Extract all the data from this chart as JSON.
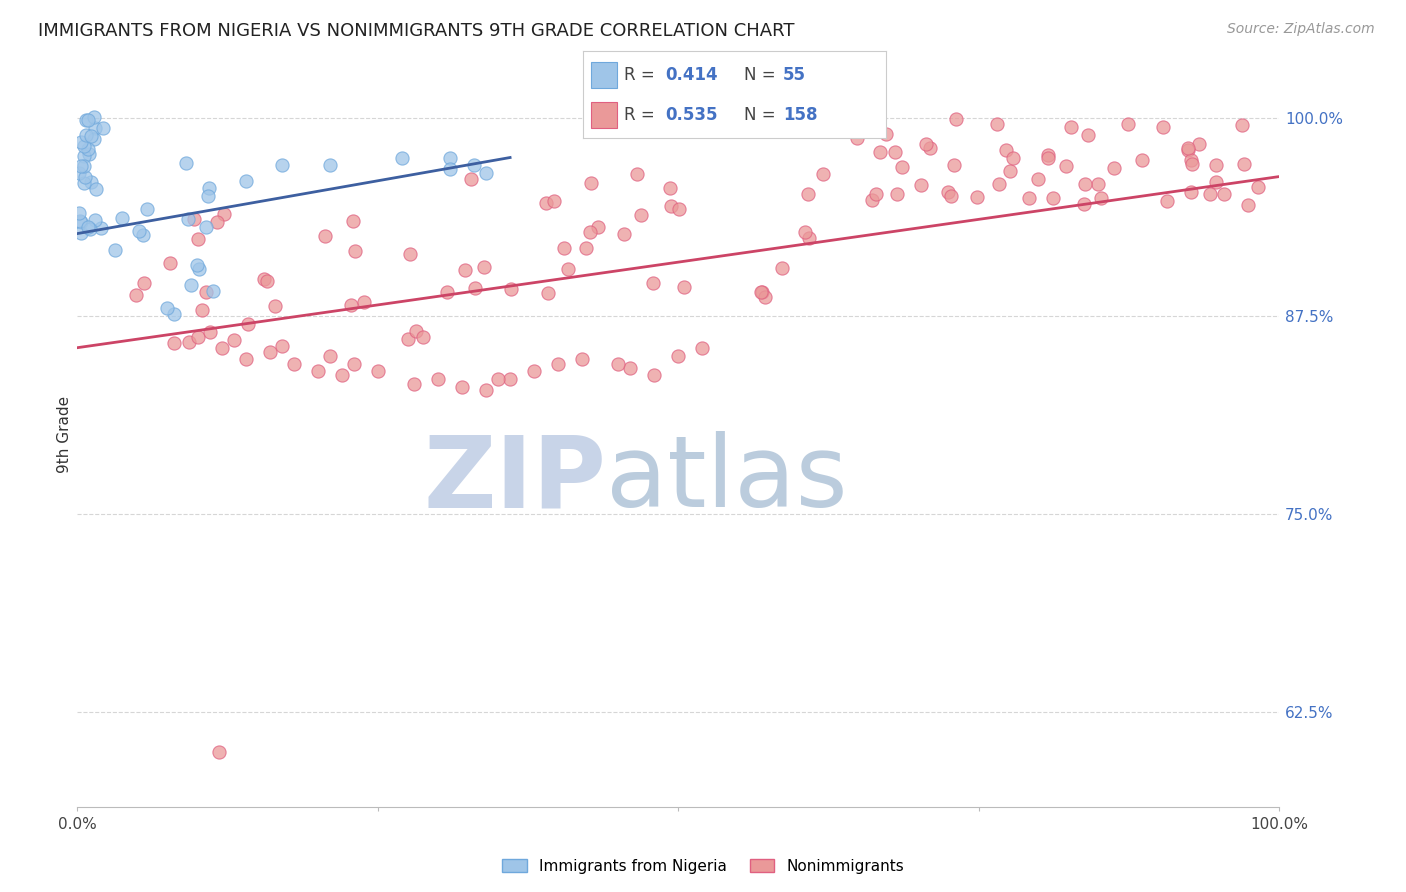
{
  "title": "IMMIGRANTS FROM NIGERIA VS NONIMMIGRANTS 9TH GRADE CORRELATION CHART",
  "source": "Source: ZipAtlas.com",
  "ylabel": "9th Grade",
  "ytick_labels": [
    "100.0%",
    "87.5%",
    "75.0%",
    "62.5%"
  ],
  "ytick_values": [
    1.0,
    0.875,
    0.75,
    0.625
  ],
  "legend_blue_r": "0.414",
  "legend_blue_n": "55",
  "legend_pink_r": "0.535",
  "legend_pink_n": "158",
  "legend_label_blue": "Immigrants from Nigeria",
  "legend_label_pink": "Nonimmigrants",
  "blue_color": "#9fc5e8",
  "pink_color": "#ea9999",
  "blue_edge_color": "#6fa8dc",
  "pink_edge_color": "#e06080",
  "blue_line_color": "#3d5fa0",
  "pink_line_color": "#cc4466",
  "r_color": "#4472c4",
  "n_color": "#4472c4",
  "background_color": "#ffffff",
  "grid_color": "#cccccc",
  "xlim": [
    0.0,
    1.0
  ],
  "ylim": [
    0.565,
    1.035
  ],
  "figsize": [
    14.06,
    8.92
  ],
  "dpi": 100
}
